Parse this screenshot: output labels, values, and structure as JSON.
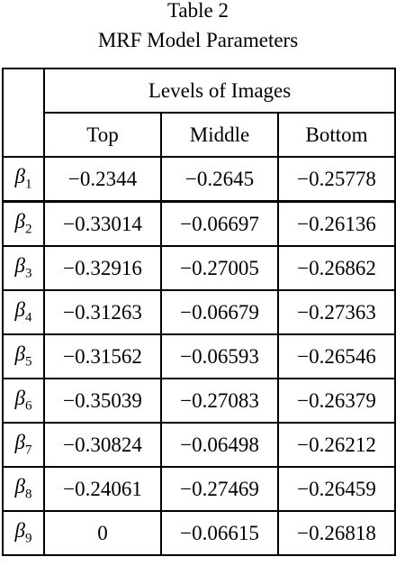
{
  "header": {
    "title": "Table 2",
    "subtitle": "MRF Model Parameters"
  },
  "table": {
    "group_header": "Levels of Images",
    "columns": [
      "Top",
      "Middle",
      "Bottom"
    ],
    "rows": [
      {
        "symbol": "β",
        "sub": "1",
        "cells": [
          "−0.2344",
          "−0.2645",
          "−0.25778"
        ]
      },
      {
        "symbol": "β",
        "sub": "2",
        "cells": [
          "−0.33014",
          "−0.06697",
          "−0.26136"
        ]
      },
      {
        "symbol": "β",
        "sub": "3",
        "cells": [
          "−0.32916",
          "−0.27005",
          "−0.26862"
        ]
      },
      {
        "symbol": "β",
        "sub": "4",
        "cells": [
          "−0.31263",
          "−0.06679",
          "−0.27363"
        ]
      },
      {
        "symbol": "β",
        "sub": "5",
        "cells": [
          "−0.31562",
          "−0.06593",
          "−0.26546"
        ]
      },
      {
        "symbol": "β",
        "sub": "6",
        "cells": [
          "−0.35039",
          "−0.27083",
          "−0.26379"
        ]
      },
      {
        "symbol": "β",
        "sub": "7",
        "cells": [
          "−0.30824",
          "−0.06498",
          "−0.26212"
        ]
      },
      {
        "symbol": "β",
        "sub": "8",
        "cells": [
          "−0.24061",
          "−0.27469",
          "−0.26459"
        ]
      },
      {
        "symbol": "β",
        "sub": "9",
        "cells": [
          "0",
          "−0.06615",
          "−0.26818"
        ]
      }
    ]
  }
}
